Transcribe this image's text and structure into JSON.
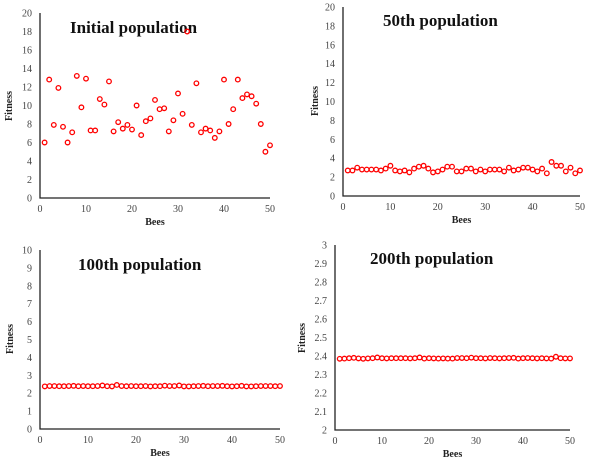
{
  "marker_color": "#ff0000",
  "chart_data": [
    {
      "type": "scatter",
      "title": "Initial population",
      "xlabel": "Bees",
      "ylabel": "Fitness",
      "xlim": [
        0,
        50
      ],
      "ylim": [
        0,
        20
      ],
      "xticks": [
        0,
        10,
        20,
        30,
        40,
        50
      ],
      "yticks": [
        0,
        2,
        4,
        6,
        8,
        10,
        12,
        14,
        16,
        18,
        20
      ],
      "grid": false,
      "x": [
        1,
        2,
        3,
        4,
        5,
        6,
        7,
        8,
        9,
        10,
        11,
        12,
        13,
        14,
        15,
        16,
        17,
        18,
        19,
        20,
        21,
        22,
        23,
        24,
        25,
        26,
        27,
        28,
        29,
        30,
        31,
        32,
        33,
        34,
        35,
        36,
        37,
        38,
        39,
        40,
        41,
        42,
        43,
        44,
        45,
        46,
        47,
        48,
        49,
        50
      ],
      "y": [
        6.0,
        12.8,
        7.9,
        11.9,
        7.7,
        6.0,
        7.1,
        13.2,
        9.8,
        12.9,
        7.3,
        7.3,
        10.7,
        10.1,
        12.6,
        7.2,
        8.2,
        7.5,
        7.9,
        7.4,
        10.0,
        6.8,
        8.3,
        8.6,
        10.6,
        9.6,
        9.7,
        7.2,
        8.4,
        11.3,
        9.1,
        18.0,
        7.9,
        12.4,
        7.1,
        7.5,
        7.3,
        6.5,
        7.2,
        12.8,
        8.0,
        9.6,
        12.8,
        10.8,
        11.2,
        11.0,
        10.2,
        8.0,
        5.0,
        5.7
      ]
    },
    {
      "type": "scatter",
      "title": "50th population",
      "xlabel": "Bees",
      "ylabel": "Fitness",
      "xlim": [
        0,
        50
      ],
      "ylim": [
        0,
        20
      ],
      "xticks": [
        0,
        10,
        20,
        30,
        40,
        50
      ],
      "yticks": [
        0,
        2,
        4,
        6,
        8,
        10,
        12,
        14,
        16,
        18,
        20
      ],
      "grid": false,
      "x": [
        1,
        2,
        3,
        4,
        5,
        6,
        7,
        8,
        9,
        10,
        11,
        12,
        13,
        14,
        15,
        16,
        17,
        18,
        19,
        20,
        21,
        22,
        23,
        24,
        25,
        26,
        27,
        28,
        29,
        30,
        31,
        32,
        33,
        34,
        35,
        36,
        37,
        38,
        39,
        40,
        41,
        42,
        43,
        44,
        45,
        46,
        47,
        48,
        49,
        50
      ],
      "y": [
        2.7,
        2.7,
        3.0,
        2.8,
        2.8,
        2.8,
        2.8,
        2.7,
        2.9,
        3.2,
        2.7,
        2.6,
        2.7,
        2.5,
        2.9,
        3.1,
        3.2,
        2.9,
        2.5,
        2.6,
        2.8,
        3.1,
        3.1,
        2.6,
        2.6,
        2.9,
        2.9,
        2.6,
        2.8,
        2.6,
        2.8,
        2.8,
        2.8,
        2.6,
        3.0,
        2.7,
        2.8,
        3.0,
        3.0,
        2.8,
        2.6,
        2.9,
        2.4,
        3.6,
        3.2,
        3.2,
        2.6,
        3.0,
        2.4,
        2.7
      ]
    },
    {
      "type": "scatter",
      "title": "100th population",
      "xlabel": "Bees",
      "ylabel": "Fitness",
      "xlim": [
        0,
        50
      ],
      "ylim": [
        0,
        10
      ],
      "xticks": [
        0,
        10,
        20,
        30,
        40,
        50
      ],
      "yticks": [
        0,
        1,
        2,
        3,
        4,
        5,
        6,
        7,
        8,
        9,
        10
      ],
      "grid": false,
      "x": [
        1,
        2,
        3,
        4,
        5,
        6,
        7,
        8,
        9,
        10,
        11,
        12,
        13,
        14,
        15,
        16,
        17,
        18,
        19,
        20,
        21,
        22,
        23,
        24,
        25,
        26,
        27,
        28,
        29,
        30,
        31,
        32,
        33,
        34,
        35,
        36,
        37,
        38,
        39,
        40,
        41,
        42,
        43,
        44,
        45,
        46,
        47,
        48,
        49,
        50
      ],
      "y": [
        2.38,
        2.4,
        2.4,
        2.39,
        2.39,
        2.4,
        2.41,
        2.39,
        2.4,
        2.39,
        2.39,
        2.4,
        2.43,
        2.39,
        2.38,
        2.46,
        2.4,
        2.39,
        2.4,
        2.39,
        2.39,
        2.4,
        2.38,
        2.39,
        2.39,
        2.42,
        2.4,
        2.4,
        2.43,
        2.38,
        2.38,
        2.39,
        2.4,
        2.41,
        2.39,
        2.4,
        2.4,
        2.41,
        2.39,
        2.38,
        2.39,
        2.41,
        2.38,
        2.38,
        2.39,
        2.4,
        2.4,
        2.4,
        2.39,
        2.4
      ]
    },
    {
      "type": "scatter",
      "title": "200th population",
      "xlabel": "Bees",
      "ylabel": "Fitness",
      "xlim": [
        0,
        50
      ],
      "ylim": [
        2,
        3
      ],
      "xticks": [
        0,
        10,
        20,
        30,
        40,
        50
      ],
      "yticks": [
        "2",
        "2.1",
        "2.2",
        "2.3",
        "2.4",
        "2.5",
        "2.6",
        "2.7",
        "2.8",
        "2.9",
        "3"
      ],
      "grid": false,
      "x": [
        1,
        2,
        3,
        4,
        5,
        6,
        7,
        8,
        9,
        10,
        11,
        12,
        13,
        14,
        15,
        16,
        17,
        18,
        19,
        20,
        21,
        22,
        23,
        24,
        25,
        26,
        27,
        28,
        29,
        30,
        31,
        32,
        33,
        34,
        35,
        36,
        37,
        38,
        39,
        40,
        41,
        42,
        43,
        44,
        45,
        46,
        47,
        48,
        49,
        50
      ],
      "y": [
        2.385,
        2.386,
        2.388,
        2.39,
        2.387,
        2.385,
        2.387,
        2.388,
        2.392,
        2.388,
        2.387,
        2.388,
        2.388,
        2.388,
        2.388,
        2.387,
        2.388,
        2.392,
        2.386,
        2.388,
        2.387,
        2.386,
        2.387,
        2.386,
        2.386,
        2.389,
        2.389,
        2.388,
        2.391,
        2.388,
        2.388,
        2.387,
        2.389,
        2.388,
        2.387,
        2.388,
        2.389,
        2.39,
        2.386,
        2.388,
        2.389,
        2.388,
        2.387,
        2.388,
        2.387,
        2.386,
        2.396,
        2.388,
        2.387,
        2.387
      ]
    }
  ]
}
